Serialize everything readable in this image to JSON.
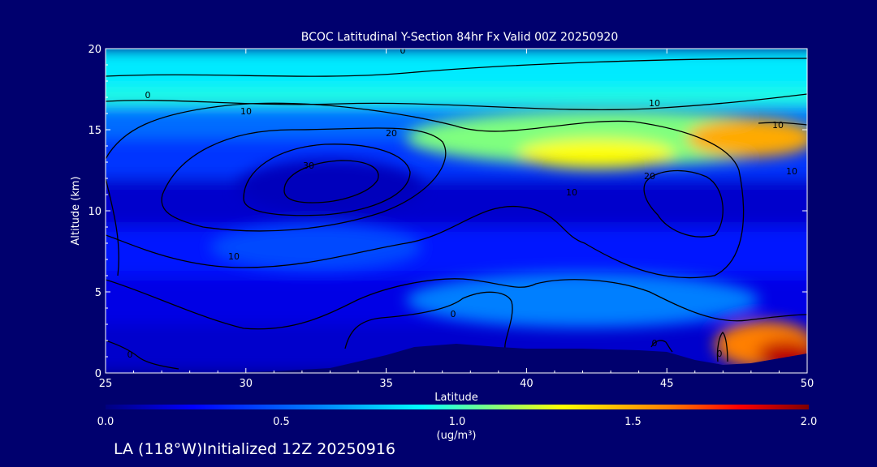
{
  "chart_data": {
    "type": "heatmap",
    "title": "BCOC Latitudinal Y-Section 84hr  Fx Valid 00Z 20250920",
    "xlabel": "Latitude",
    "ylabel": "Altitude (km)",
    "xlim": [
      25,
      50
    ],
    "ylim": [
      0,
      20
    ],
    "x_ticks": [
      "25",
      "30",
      "35",
      "40",
      "45",
      "50"
    ],
    "y_ticks": [
      "0",
      "5",
      "10",
      "15",
      "20"
    ],
    "colorbar": {
      "min": 0.0,
      "max": 2.0,
      "ticks": [
        "0.0",
        "0.5",
        "1.0",
        "1.5",
        "2.0"
      ],
      "units": "(ug/m³)",
      "colors": [
        "#00007f",
        "#0000ff",
        "#007fff",
        "#00ffff",
        "#7fff7f",
        "#ffff00",
        "#ff7f00",
        "#ff0000",
        "#7f0000"
      ]
    },
    "contour_levels": [
      "0",
      "10",
      "20",
      "30"
    ],
    "bands": [
      {
        "alt": [
          17.5,
          20
        ],
        "value": 0.85
      },
      {
        "alt": [
          16.5,
          17.5
        ],
        "value": 0.95
      },
      {
        "alt": [
          14.5,
          16.5
        ],
        "value": 0.55
      },
      {
        "alt": [
          12.0,
          14.5
        ],
        "value": 0.4
      },
      {
        "alt": [
          9.0,
          12.0
        ],
        "value": 0.15
      },
      {
        "alt": [
          6.0,
          9.0
        ],
        "value": 0.3
      },
      {
        "alt": [
          3.0,
          6.0
        ],
        "value": 0.2
      },
      {
        "alt": [
          0,
          3.0
        ],
        "value": 0.15
      }
    ],
    "patches": [
      {
        "lat": [
          36,
          50
        ],
        "alt": [
          13,
          16
        ],
        "value": 1.1
      },
      {
        "lat": [
          40,
          45
        ],
        "alt": [
          12.8,
          14.2
        ],
        "value": 1.3
      },
      {
        "lat": [
          46,
          50
        ],
        "alt": [
          13.5,
          15.5
        ],
        "value": 1.5
      },
      {
        "lat": [
          47,
          50
        ],
        "alt": [
          0.5,
          3
        ],
        "value": 1.6
      },
      {
        "lat": [
          48.5,
          50
        ],
        "alt": [
          0.5,
          1.8
        ],
        "value": 1.9
      },
      {
        "lat": [
          36,
          48
        ],
        "alt": [
          3,
          6
        ],
        "value": 0.6
      },
      {
        "lat": [
          29,
          36
        ],
        "alt": [
          6.5,
          9
        ],
        "value": 0.45
      },
      {
        "lat": [
          30,
          36
        ],
        "alt": [
          10,
          13
        ],
        "value": 0.12
      }
    ],
    "terrain": [
      [
        25,
        0
      ],
      [
        29,
        0
      ],
      [
        31,
        0.1
      ],
      [
        33,
        0.3
      ],
      [
        35,
        1.1
      ],
      [
        36,
        1.6
      ],
      [
        37.5,
        1.8
      ],
      [
        39,
        1.6
      ],
      [
        40,
        1.5
      ],
      [
        42,
        1.5
      ],
      [
        44,
        1.4
      ],
      [
        45,
        1.3
      ],
      [
        46,
        0.8
      ],
      [
        47,
        0.5
      ],
      [
        48,
        0.6
      ],
      [
        49,
        0.9
      ],
      [
        50,
        1.2
      ]
    ]
  },
  "footer": {
    "text": "LA (118°W)Initialized 12Z 20250916"
  }
}
